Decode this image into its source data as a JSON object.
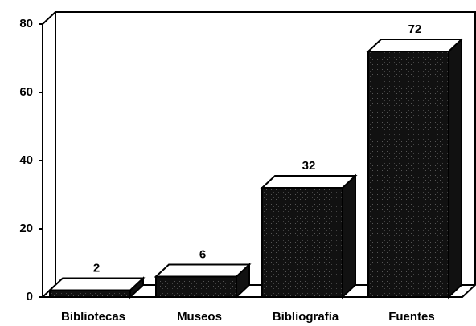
{
  "chart_data": {
    "type": "bar3d",
    "categories": [
      "Bibliotecas",
      "Museos",
      "Bibliografía",
      "Fuentes"
    ],
    "values": [
      2,
      6,
      32,
      72
    ],
    "color": "#111111",
    "ylim": [
      0,
      80
    ],
    "yticks": [
      0,
      20,
      40,
      60,
      80
    ]
  }
}
